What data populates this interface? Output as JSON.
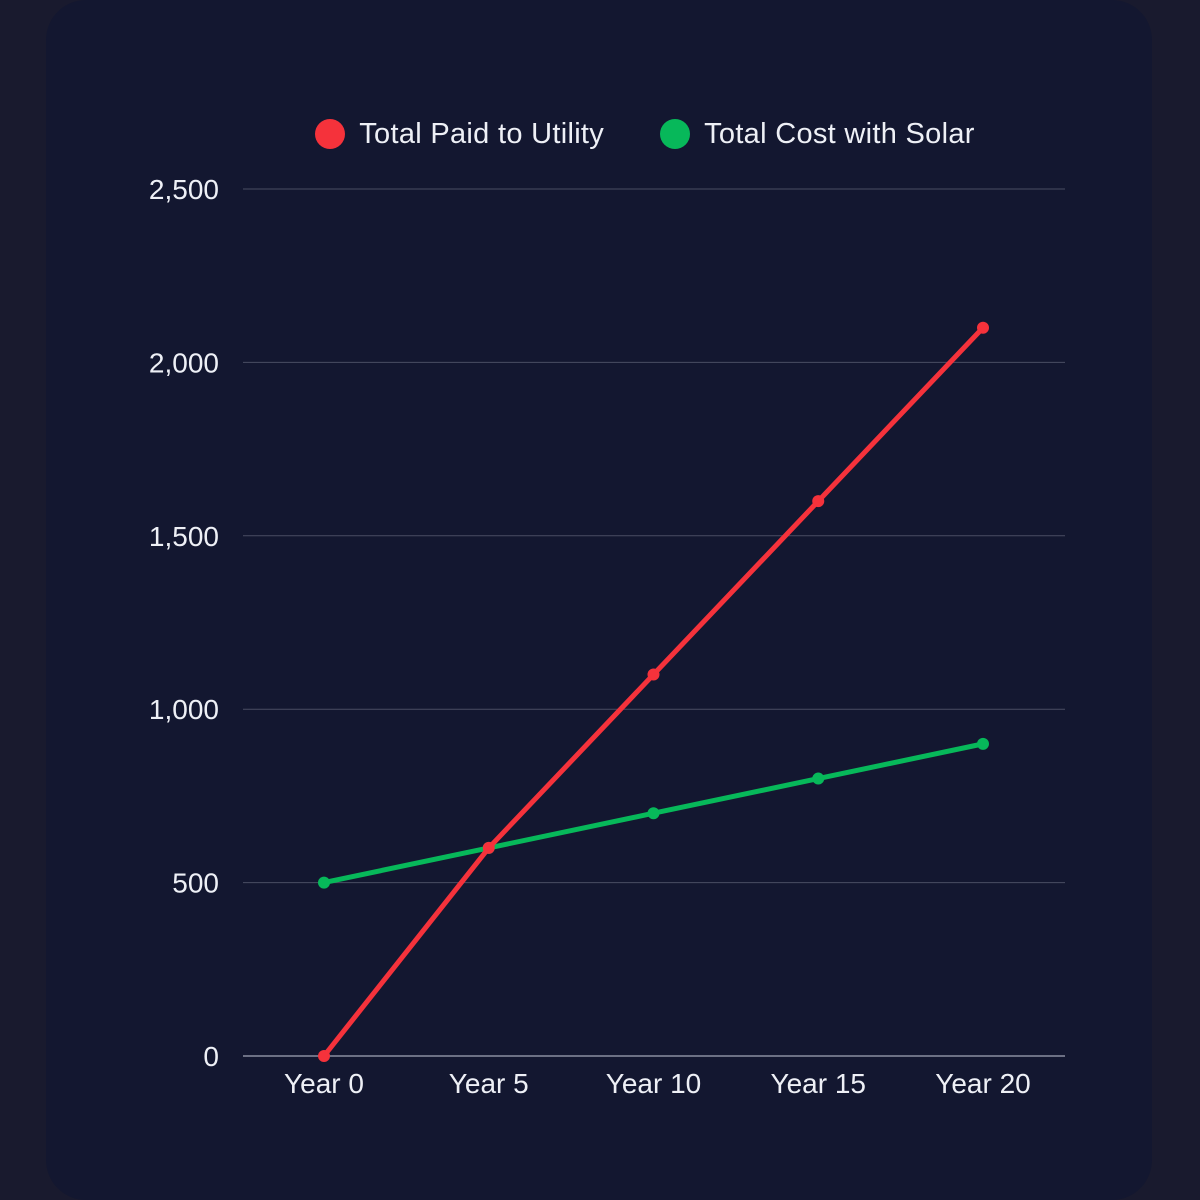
{
  "colors": {
    "background": "#191a2e",
    "card": "#131730",
    "grid": "#4a4d62",
    "text": "#eef0f6"
  },
  "chart_data": {
    "type": "line",
    "x": [
      "Year 0",
      "Year 5",
      "Year 10",
      "Year 15",
      "Year 20"
    ],
    "series": [
      {
        "name": "Total Paid to Utility",
        "color": "#f5323b",
        "values": [
          0,
          600,
          1100,
          1600,
          2100
        ]
      },
      {
        "name": "Total Cost with Solar",
        "color": "#07b85a",
        "values": [
          500,
          600,
          700,
          800,
          900
        ]
      }
    ],
    "ylim": [
      0,
      2500
    ],
    "yticks": [
      0,
      500,
      1000,
      1500,
      2000,
      2500
    ],
    "ytick_labels": [
      "0",
      "500",
      "1,000",
      "1,500",
      "2,000",
      "2,500"
    ],
    "grid": true,
    "legend_position": "top"
  }
}
